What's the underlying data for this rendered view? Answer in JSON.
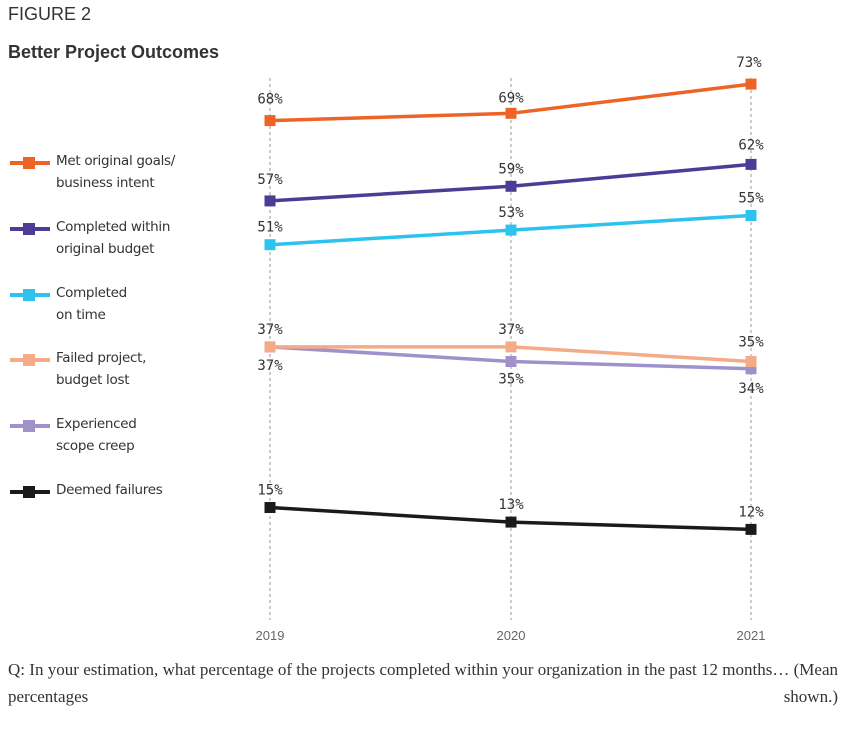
{
  "figure_label": "FIGURE 2",
  "title": "Better Project Outcomes",
  "caption": "Q: In your estimation, what percentage of the projects completed within your organization in the past 12 months… (Mean percentages shown.)",
  "chart_data": {
    "type": "line",
    "x": [
      "2019",
      "2020",
      "2021"
    ],
    "ylim": [
      0,
      80
    ],
    "grid": "vertical dashed at each year",
    "legend_placement": "left",
    "series": [
      {
        "name": "Met original goals/\nbusiness intent",
        "values": [
          68,
          69,
          73
        ],
        "labels": [
          "68%",
          "69%",
          "73%"
        ],
        "color": "#ee6426"
      },
      {
        "name": "Completed within\noriginal budget",
        "values": [
          57,
          59,
          62
        ],
        "labels": [
          "57%",
          "59%",
          "62%"
        ],
        "color": "#4d3b95"
      },
      {
        "name": "Completed\non time",
        "values": [
          51,
          53,
          55
        ],
        "labels": [
          "51%",
          "53%",
          "55%"
        ],
        "color": "#2ec3ef"
      },
      {
        "name": "Failed project,\nbudget lost",
        "values": [
          37,
          37,
          35
        ],
        "labels": [
          "37%",
          "37%",
          "35%"
        ],
        "color": "#f5ab87"
      },
      {
        "name": "Experienced\nscope creep",
        "values": [
          37,
          35,
          34
        ],
        "labels": [
          "37%",
          "35%",
          "34%"
        ],
        "color": "#a091cb"
      },
      {
        "name": "Deemed failures",
        "values": [
          15,
          13,
          12
        ],
        "labels": [
          "15%",
          "13%",
          "12%"
        ],
        "color": "#1a1a1a"
      }
    ]
  }
}
